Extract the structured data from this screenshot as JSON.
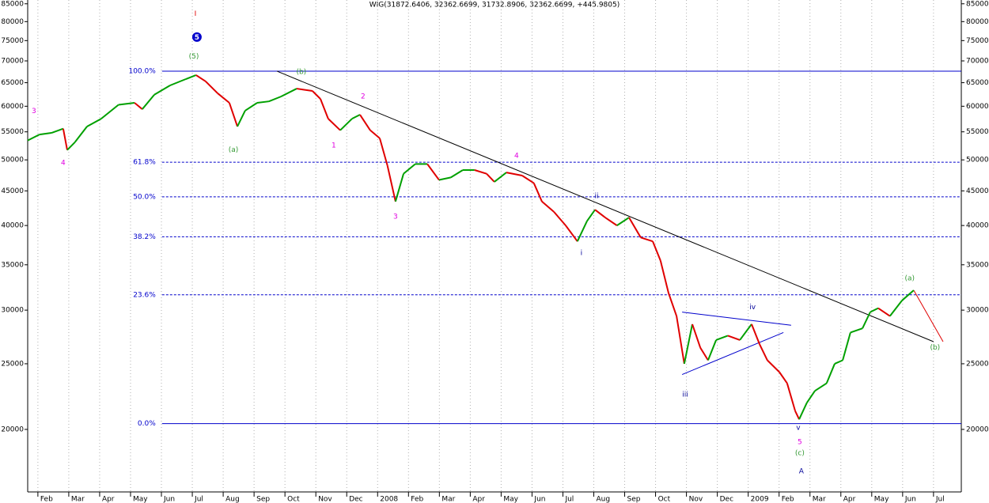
{
  "chart_data": {
    "type": "line",
    "title": "WIG(31872.6406, 32362.6699, 31732.8906, 32362.6699, +445.9805)",
    "log_scale": true,
    "grid": "x",
    "xlim": [
      0.67,
      30.9
    ],
    "ylim": [
      16170,
      86100
    ],
    "xticks": [
      {
        "value": 1,
        "label": "Feb"
      },
      {
        "value": 2,
        "label": "Mar"
      },
      {
        "value": 3,
        "label": "Apr"
      },
      {
        "value": 4,
        "label": "May"
      },
      {
        "value": 5,
        "label": "Jun"
      },
      {
        "value": 6,
        "label": "Jul"
      },
      {
        "value": 7,
        "label": "Aug"
      },
      {
        "value": 8,
        "label": "Sep"
      },
      {
        "value": 9,
        "label": "Oct"
      },
      {
        "value": 10,
        "label": "Nov"
      },
      {
        "value": 11,
        "label": "Dec"
      },
      {
        "value": 12,
        "label": "2008"
      },
      {
        "value": 13,
        "label": "Feb"
      },
      {
        "value": 14,
        "label": "Mar"
      },
      {
        "value": 15,
        "label": "Apr"
      },
      {
        "value": 16,
        "label": "May"
      },
      {
        "value": 17,
        "label": "Jun"
      },
      {
        "value": 18,
        "label": "Jul"
      },
      {
        "value": 19,
        "label": "Aug"
      },
      {
        "value": 20,
        "label": "Sep"
      },
      {
        "value": 21,
        "label": "Oct"
      },
      {
        "value": 22,
        "label": "Nov"
      },
      {
        "value": 23,
        "label": "Dec"
      },
      {
        "value": 24,
        "label": "2009"
      },
      {
        "value": 25,
        "label": "Feb"
      },
      {
        "value": 26,
        "label": "Mar"
      },
      {
        "value": 27,
        "label": "Apr"
      },
      {
        "value": 28,
        "label": "May"
      },
      {
        "value": 29,
        "label": "Jun"
      },
      {
        "value": 30,
        "label": "Jul"
      }
    ],
    "yticks": [
      20000,
      25000,
      30000,
      35000,
      40000,
      45000,
      50000,
      55000,
      60000,
      65000,
      70000,
      75000,
      80000,
      85000
    ],
    "series": [
      {
        "up_color": "#00a000",
        "down_color": "#e00000",
        "x": [
          0.67,
          1.05,
          1.44,
          1.82,
          1.95,
          2.2,
          2.59,
          3.05,
          3.61,
          4.13,
          4.38,
          4.77,
          5.28,
          5.79,
          6.12,
          6.43,
          6.82,
          7.2,
          7.46,
          7.71,
          8.1,
          8.48,
          8.87,
          9.38,
          9.89,
          10.15,
          10.4,
          10.79,
          11.17,
          11.43,
          11.76,
          12.07,
          12.32,
          12.58,
          12.84,
          13.22,
          13.61,
          13.99,
          14.37,
          14.76,
          15.14,
          15.53,
          15.78,
          16.17,
          16.68,
          17.06,
          17.32,
          17.71,
          18.09,
          18.47,
          18.78,
          19.04,
          19.37,
          19.75,
          20.14,
          20.52,
          20.91,
          21.16,
          21.42,
          21.68,
          21.93,
          22.19,
          22.45,
          22.7,
          22.96,
          23.34,
          23.73,
          24.11,
          24.37,
          24.62,
          25.01,
          25.26,
          25.52,
          25.65,
          25.9,
          26.16,
          26.54,
          26.8,
          27.06,
          27.31,
          27.7,
          27.95,
          28.21,
          28.59,
          28.98,
          29.36
        ],
        "values": [
          53400,
          54500,
          54800,
          55600,
          51700,
          53100,
          56000,
          57500,
          60300,
          60700,
          59400,
          62400,
          64400,
          65800,
          66700,
          65300,
          62700,
          60700,
          56000,
          59100,
          60700,
          61000,
          62000,
          63700,
          63200,
          61500,
          57500,
          55300,
          57500,
          58300,
          55300,
          53800,
          49000,
          43400,
          47700,
          49300,
          49300,
          46700,
          47100,
          48300,
          48300,
          47700,
          46400,
          47900,
          47400,
          46200,
          43400,
          41900,
          40000,
          37900,
          40600,
          42200,
          41100,
          40000,
          41100,
          38400,
          37900,
          35500,
          31800,
          29400,
          25000,
          28600,
          26400,
          25300,
          27100,
          27500,
          27100,
          28600,
          26700,
          25300,
          24300,
          23400,
          21300,
          20700,
          21900,
          22800,
          23400,
          25000,
          25300,
          27800,
          28200,
          29800,
          30200,
          29400,
          31000,
          32100
        ]
      }
    ],
    "level_color": "#0000cc",
    "levels": [
      {
        "label": "100.0%",
        "value": 67600,
        "style": "solid",
        "x_start": 5.02
      },
      {
        "label": "61.8%",
        "value": 49600,
        "style": "dashed",
        "x_start": 5.02
      },
      {
        "label": "50.0%",
        "value": 44100,
        "style": "dashed",
        "x_start": 5.02
      },
      {
        "label": "38.2%",
        "value": 38500,
        "style": "dashed",
        "x_start": 5.02
      },
      {
        "label": "23.6%",
        "value": 31600,
        "style": "dashed",
        "x_start": 5.02
      },
      {
        "label": "0.0%",
        "value": 20400,
        "style": "solid",
        "x_start": 5.02
      }
    ],
    "lines": [
      {
        "color": "#000000",
        "x": [
          8.74,
          30.0
        ],
        "y": [
          67600,
          26950
        ]
      },
      {
        "color": "#e00000",
        "x": [
          29.36,
          30.31
        ],
        "y": [
          32100,
          26950
        ]
      },
      {
        "color": "#0000cc",
        "x": [
          21.86,
          25.39
        ],
        "y": [
          29800,
          28500
        ]
      },
      {
        "color": "#0000cc",
        "x": [
          21.86,
          25.14
        ],
        "y": [
          24100,
          27800
        ]
      }
    ],
    "labels": [
      {
        "text": "I",
        "x": 6.1,
        "y": 82100,
        "color": "#e00000"
      },
      {
        "text": "5",
        "x": 6.15,
        "y": 75900,
        "color": "#0000cc",
        "circle": true
      },
      {
        "text": "(5)",
        "x": 6.05,
        "y": 71000,
        "color": "#339933"
      },
      {
        "text": "3",
        "x": 0.87,
        "y": 59000,
        "color": "#e000e0"
      },
      {
        "text": "4",
        "x": 1.82,
        "y": 49500,
        "color": "#e000e0"
      },
      {
        "text": "(a)",
        "x": 7.33,
        "y": 51700,
        "color": "#339933"
      },
      {
        "text": "(b)",
        "x": 9.53,
        "y": 67400,
        "color": "#339933"
      },
      {
        "text": "2",
        "x": 11.53,
        "y": 62000,
        "color": "#e000e0"
      },
      {
        "text": "1",
        "x": 10.58,
        "y": 52500,
        "color": "#e000e0"
      },
      {
        "text": "3",
        "x": 12.58,
        "y": 41200,
        "color": "#e000e0"
      },
      {
        "text": "4",
        "x": 16.5,
        "y": 50700,
        "color": "#e000e0"
      },
      {
        "text": "ii",
        "x": 19.09,
        "y": 44200,
        "color": "#000099"
      },
      {
        "text": "i",
        "x": 18.6,
        "y": 36400,
        "color": "#000099"
      },
      {
        "text": "iii",
        "x": 21.96,
        "y": 22500,
        "color": "#000099"
      },
      {
        "text": "iv",
        "x": 24.14,
        "y": 30300,
        "color": "#000099"
      },
      {
        "text": "v",
        "x": 25.62,
        "y": 20100,
        "color": "#000099"
      },
      {
        "text": "5",
        "x": 25.67,
        "y": 19150,
        "color": "#e000e0"
      },
      {
        "text": "(c)",
        "x": 25.67,
        "y": 18440,
        "color": "#339933"
      },
      {
        "text": "A",
        "x": 25.72,
        "y": 17340,
        "color": "#000099"
      },
      {
        "text": "(a)",
        "x": 29.23,
        "y": 33420,
        "color": "#339933"
      },
      {
        "text": "(b)",
        "x": 30.05,
        "y": 26400,
        "color": "#339933"
      }
    ]
  }
}
